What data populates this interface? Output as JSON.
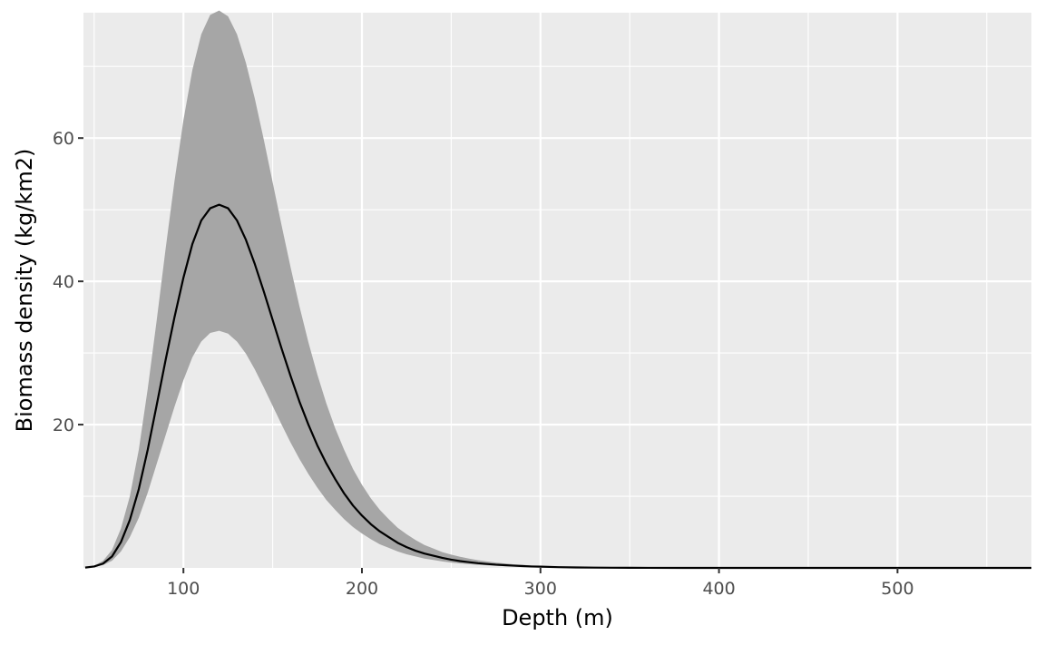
{
  "chart_data": {
    "type": "area",
    "title": "",
    "xlabel": "Depth (m)",
    "ylabel": "Biomass density (kg/km2)",
    "xlim": [
      44,
      575
    ],
    "ylim": [
      0,
      77.5
    ],
    "x_ticks": [
      100,
      200,
      300,
      400,
      500
    ],
    "y_ticks": [
      20,
      40,
      60
    ],
    "grid": true,
    "legend": "none",
    "colors": {
      "panel": "#ebebeb",
      "grid": "#ffffff",
      "ribbon": "#a6a6a6",
      "line": "#000000",
      "tick_text": "#4d4d4d",
      "tick_mark": "#333333"
    },
    "series": [
      {
        "x": [
          45,
          50,
          55,
          60,
          65,
          70,
          75,
          80,
          85,
          90,
          95,
          100,
          105,
          110,
          115,
          120,
          125,
          130,
          135,
          140,
          145,
          150,
          155,
          160,
          165,
          170,
          175,
          180,
          185,
          190,
          195,
          200,
          205,
          210,
          215,
          220,
          225,
          230,
          235,
          240,
          245,
          250,
          255,
          260,
          265,
          270,
          275,
          280,
          285,
          290,
          295,
          300,
          310,
          320,
          330,
          340,
          350,
          360,
          380,
          400,
          450,
          500,
          575
        ],
        "estimate": [
          0.05,
          0.2,
          0.6,
          1.6,
          3.6,
          6.7,
          11.0,
          16.5,
          22.7,
          29.0,
          35.0,
          40.5,
          45.2,
          48.5,
          50.2,
          50.7,
          50.2,
          48.5,
          45.8,
          42.4,
          38.6,
          34.6,
          30.6,
          26.8,
          23.2,
          20.0,
          17.1,
          14.6,
          12.4,
          10.4,
          8.7,
          7.3,
          6.1,
          5.1,
          4.3,
          3.5,
          2.9,
          2.4,
          2.0,
          1.7,
          1.4,
          1.15,
          0.95,
          0.8,
          0.66,
          0.55,
          0.45,
          0.38,
          0.31,
          0.25,
          0.2,
          0.17,
          0.1,
          0.06,
          0.04,
          0.025,
          0.015,
          0.01,
          0.004,
          0.002,
          0.0,
          0.0,
          0.0
        ],
        "lower": [
          0.03,
          0.12,
          0.4,
          1.0,
          2.3,
          4.3,
          7.0,
          10.5,
          14.5,
          18.5,
          22.5,
          26.2,
          29.4,
          31.6,
          32.8,
          33.1,
          32.7,
          31.6,
          29.9,
          27.7,
          25.2,
          22.6,
          20.0,
          17.5,
          15.2,
          13.1,
          11.2,
          9.5,
          8.1,
          6.8,
          5.7,
          4.8,
          4.0,
          3.3,
          2.8,
          2.3,
          1.9,
          1.6,
          1.3,
          1.1,
          0.9,
          0.75,
          0.62,
          0.52,
          0.43,
          0.36,
          0.29,
          0.24,
          0.2,
          0.16,
          0.13,
          0.11,
          0.06,
          0.04,
          0.02,
          0.015,
          0.01,
          0.005,
          0.002,
          0.001,
          0.0,
          0.0,
          0.0
        ],
        "upper": [
          0.08,
          0.3,
          1.0,
          2.5,
          5.5,
          10.0,
          16.5,
          25.0,
          34.5,
          44.5,
          54.0,
          62.5,
          69.5,
          74.5,
          77.2,
          77.8,
          77.0,
          74.5,
          70.5,
          65.5,
          59.8,
          53.8,
          47.8,
          42.0,
          36.5,
          31.5,
          27.0,
          23.0,
          19.5,
          16.5,
          13.8,
          11.6,
          9.7,
          8.1,
          6.8,
          5.6,
          4.7,
          3.9,
          3.2,
          2.7,
          2.2,
          1.85,
          1.55,
          1.3,
          1.08,
          0.9,
          0.74,
          0.62,
          0.51,
          0.42,
          0.34,
          0.28,
          0.17,
          0.1,
          0.06,
          0.04,
          0.025,
          0.015,
          0.006,
          0.003,
          0.0,
          0.0,
          0.0
        ]
      }
    ]
  }
}
